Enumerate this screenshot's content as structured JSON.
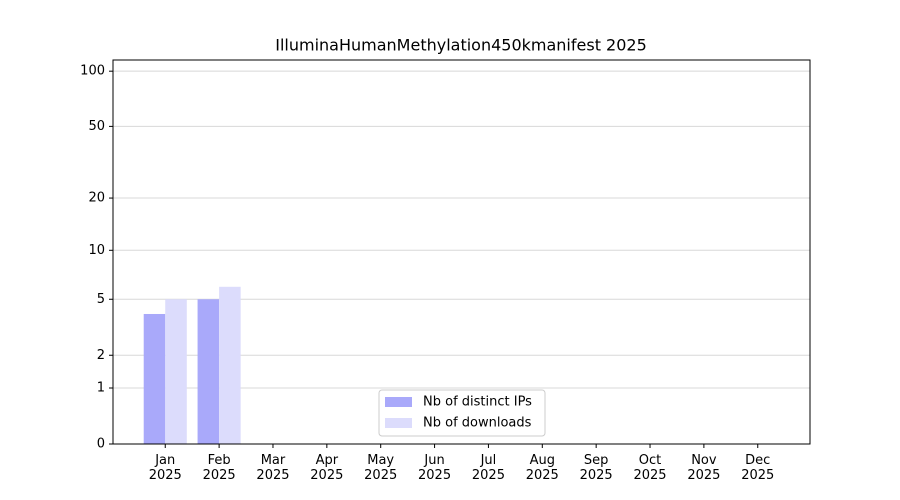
{
  "chart_data": {
    "type": "bar",
    "title": "IlluminaHumanMethylation450kmanifest 2025",
    "categories": [
      "Jan\n2025",
      "Feb\n2025",
      "Mar\n2025",
      "Apr\n2025",
      "May\n2025",
      "Jun\n2025",
      "Jul\n2025",
      "Aug\n2025",
      "Sep\n2025",
      "Oct\n2025",
      "Nov\n2025",
      "Dec\n2025"
    ],
    "series": [
      {
        "name": "Nb of distinct IPs",
        "color": "#a9a9fa",
        "values": [
          4,
          5,
          0,
          0,
          0,
          0,
          0,
          0,
          0,
          0,
          0,
          0
        ]
      },
      {
        "name": "Nb of downloads",
        "color": "#dcdcfc",
        "values": [
          5,
          6,
          0,
          0,
          0,
          0,
          0,
          0,
          0,
          0,
          0,
          0
        ]
      }
    ],
    "yscale": "log1p",
    "ylim": [
      0,
      115
    ],
    "yticks": [
      0,
      1,
      2,
      5,
      10,
      20,
      50,
      100
    ],
    "grid": true,
    "legend": "lower center"
  }
}
